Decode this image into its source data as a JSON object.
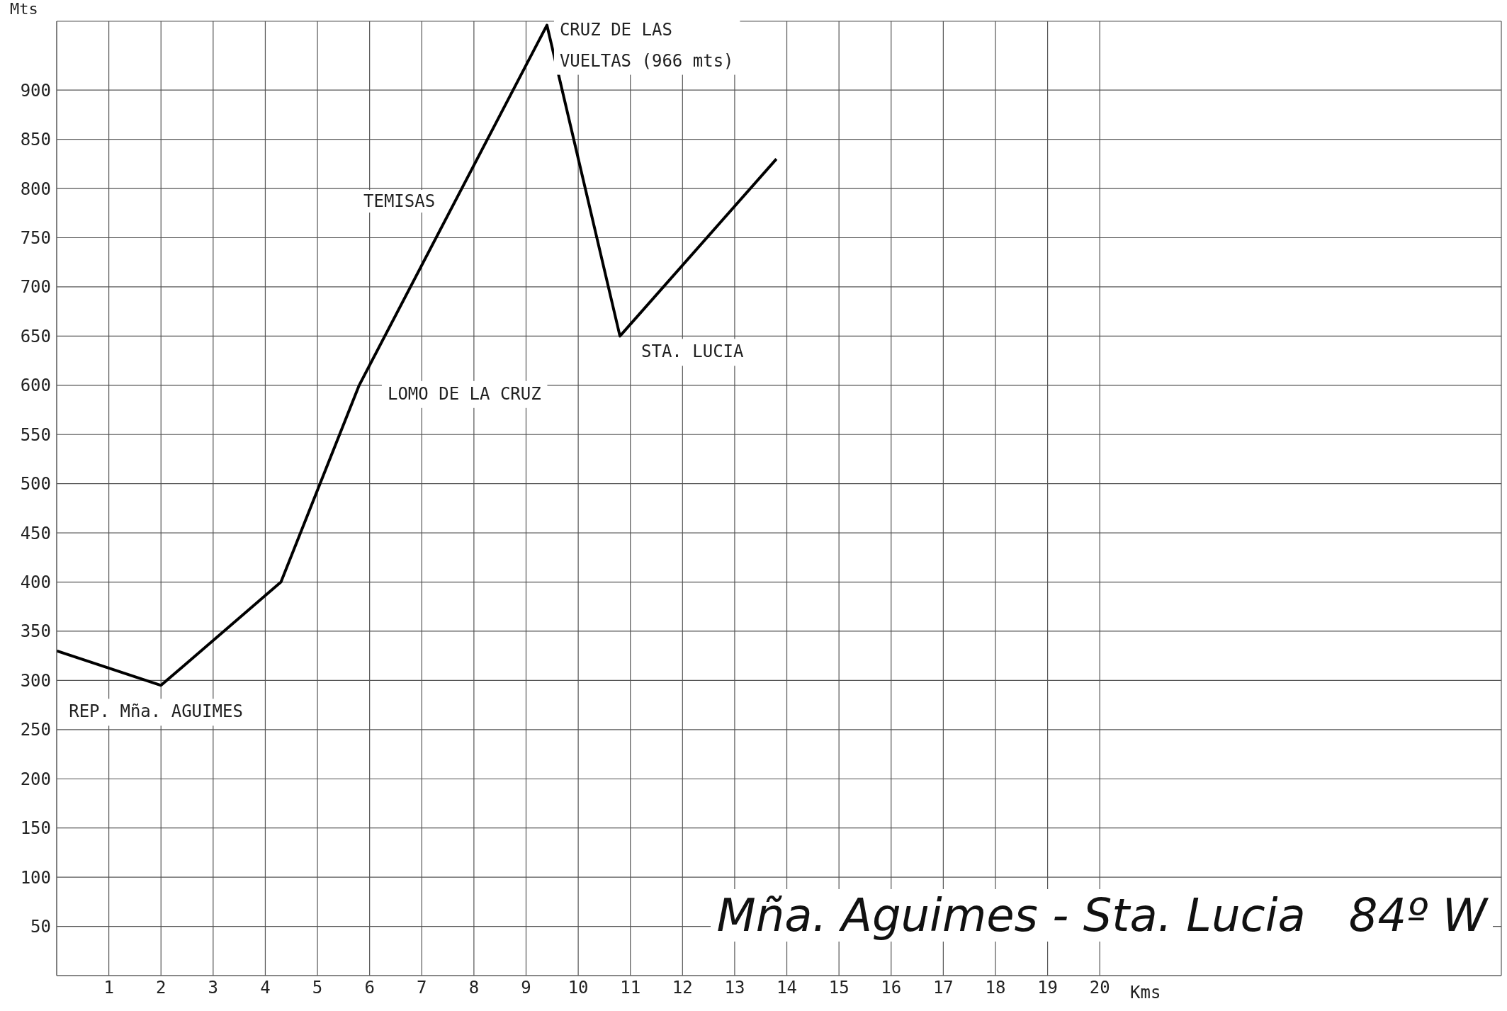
{
  "chart_data": {
    "type": "line",
    "title": "Mña. Aguimes - Sta. Lucia   84º W",
    "xlabel": "Kms",
    "ylabel": "Mts",
    "x": [
      0,
      2,
      4.3,
      5.8,
      9.4,
      10.8,
      13.8
    ],
    "series": [
      {
        "color": "#000000",
        "values": [
          330,
          295,
          400,
          600,
          966,
          650,
          830
        ]
      }
    ],
    "xlim": [
      0,
      27.7
    ],
    "xticks": [
      1,
      2,
      3,
      4,
      5,
      6,
      7,
      8,
      9,
      10,
      11,
      12,
      13,
      14,
      15,
      16,
      17,
      18,
      19,
      20
    ],
    "ylim": [
      0,
      970
    ],
    "yticks": [
      50,
      100,
      150,
      200,
      250,
      300,
      350,
      400,
      450,
      500,
      550,
      600,
      650,
      700,
      750,
      800,
      850,
      900
    ],
    "grid": true,
    "legend": false,
    "marker": "none",
    "line_style": "solid",
    "annotations": [
      {
        "text": "CRUZ DE LAS\nVUELTAS (966 mts)",
        "x": 9.4,
        "y": 966
      },
      "TEMISAS",
      {
        "text": "LOMO DE LA CRUZ",
        "x": 5.8,
        "y": 600
      },
      {
        "text": "STA. LUCIA",
        "x": 10.8,
        "y": 650
      },
      {
        "text": "REP. Mña. AGUIMES",
        "x": 2,
        "y": 295
      }
    ]
  }
}
